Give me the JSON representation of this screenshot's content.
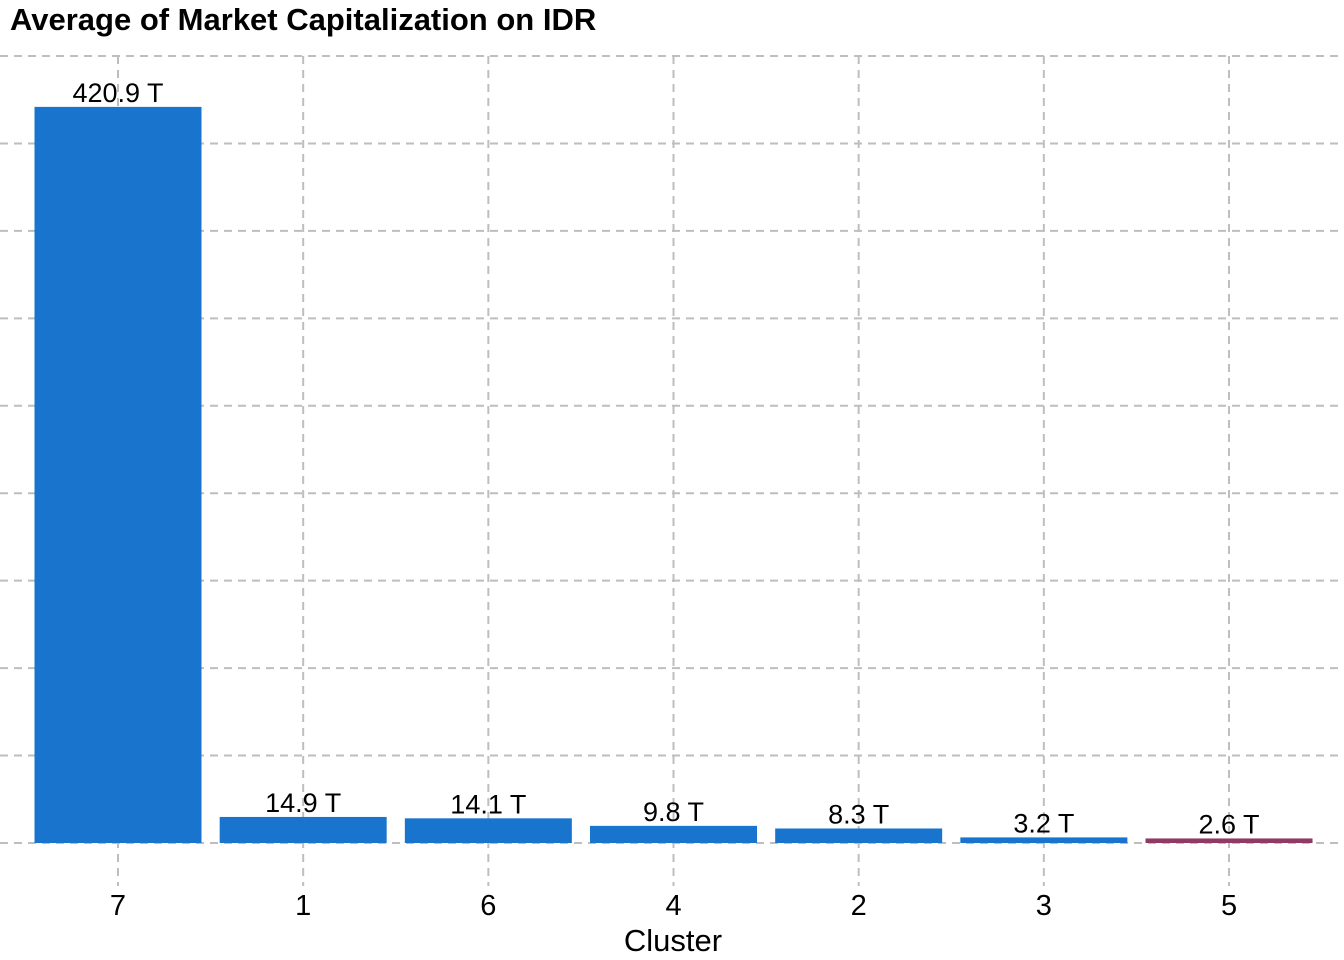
{
  "chart_data": {
    "type": "bar",
    "title": "Average of Market Capitalization on IDR",
    "xlabel": "Cluster",
    "ylabel": "",
    "categories": [
      "7",
      "1",
      "6",
      "4",
      "2",
      "3",
      "5"
    ],
    "values": [
      420.9,
      14.9,
      14.1,
      9.8,
      8.3,
      3.2,
      2.6
    ],
    "value_labels": [
      "420.9 T",
      "14.9 T",
      "14.1 T",
      "9.8 T",
      "8.3 T",
      "3.2 T",
      "2.6 T"
    ],
    "unit": "T (trillion IDR)",
    "bar_colors": [
      "#1874CD",
      "#1874CD",
      "#1874CD",
      "#1874CD",
      "#1874CD",
      "#1874CD",
      "#8E3A64"
    ],
    "accent_blue": "#1874CD",
    "accent_maroon": "#8E3A64",
    "ylim": [
      0,
      450
    ],
    "grid_step": 50,
    "grid_style": "dashed",
    "gridline_color": "#BEBEBE",
    "y_tick_labels_shown": false,
    "legend": "none"
  }
}
